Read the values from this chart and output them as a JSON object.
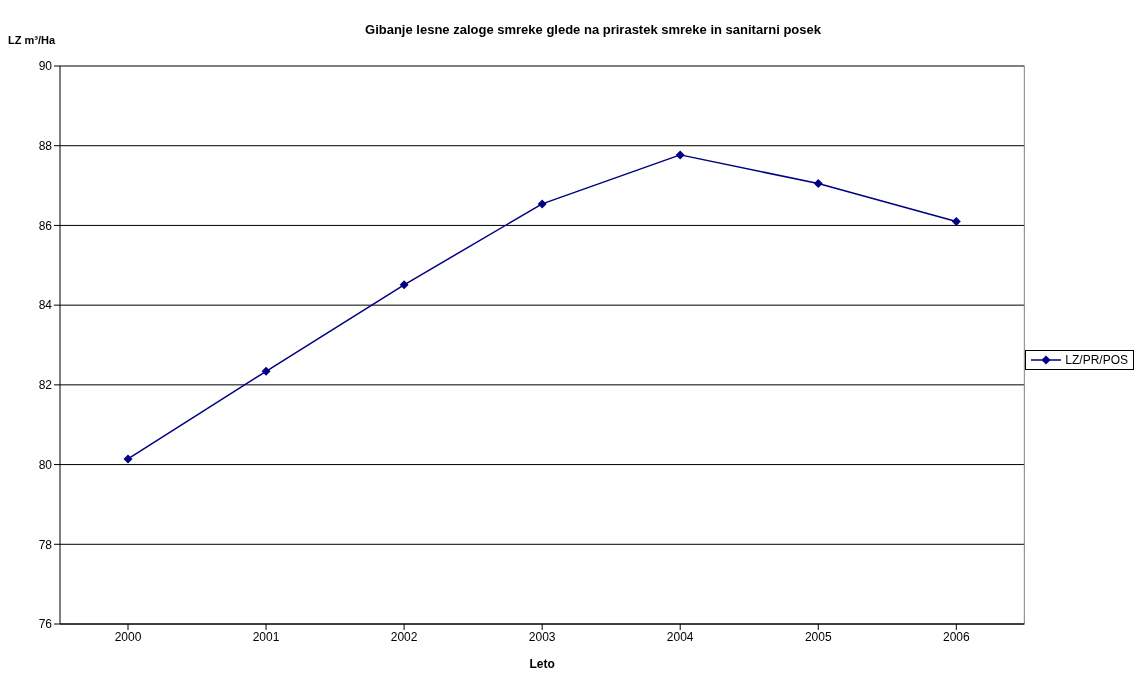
{
  "chart_data": {
    "type": "line",
    "title": "Gibanje lesne zaloge smreke glede na prirastek smreke in sanitarni posek",
    "xlabel": "Leto",
    "ylabel": "LZ m³/Ha",
    "categories": [
      "2000",
      "2001",
      "2002",
      "2003",
      "2004",
      "2005",
      "2006"
    ],
    "series": [
      {
        "name": "LZ/PR/POS",
        "color": "#000080",
        "values": [
          80.14,
          82.34,
          84.51,
          86.54,
          87.77,
          87.05,
          86.1
        ]
      }
    ],
    "ylim": [
      76,
      90
    ],
    "yticks": [
      76,
      78,
      80,
      82,
      84,
      86,
      88,
      90
    ],
    "grid": "y",
    "legend": "right",
    "marker": "diamond",
    "line_style": "solid"
  }
}
